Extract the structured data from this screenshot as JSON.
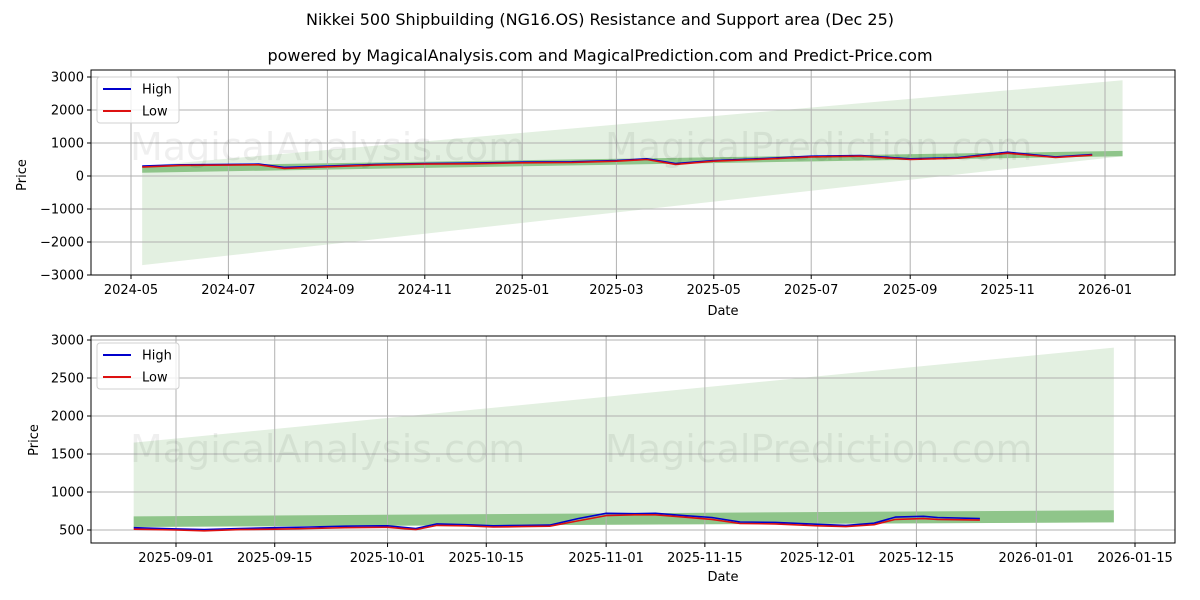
{
  "header": {
    "title": "Nikkei 500 Shipbuilding (NG16.OS) Resistance and Support area (Dec 25)",
    "subtitle": "powered by MagicalAnalysis.com and MagicalPrediction.com and Predict-Price.com"
  },
  "watermarks": [
    "MagicalAnalysis.com",
    "MagicalPrediction.com"
  ],
  "colors": {
    "high": "#0000cc",
    "low": "#dd1111",
    "band_dark": "#8fc58a",
    "band_light": "#e3f0e1",
    "grid": "#b0b0b0"
  },
  "chart_data": [
    {
      "type": "line",
      "title": "Nikkei 500 Shipbuilding (NG16.OS) Resistance and Support area (Dec 25)",
      "subtitle": "powered by MagicalAnalysis.com and MagicalPrediction.com and Predict-Price.com",
      "xlabel": "Date",
      "ylabel": "Price",
      "ylim": [
        -3000,
        3200
      ],
      "yticks": [
        "3000",
        "2000",
        "1000",
        "0",
        "−1000",
        "−2000",
        "−3000"
      ],
      "xticks": [
        "2024-05",
        "2024-07",
        "2024-09",
        "2024-11",
        "2025-01",
        "2025-03",
        "2025-05",
        "2025-07",
        "2025-09",
        "2025-11",
        "2026-01"
      ],
      "grid": true,
      "legend": {
        "position": "upper left",
        "entries": [
          "High",
          "Low"
        ]
      },
      "x": [
        "2024-05-08",
        "2024-06-01",
        "2024-07-01",
        "2024-07-20",
        "2024-08-05",
        "2024-09-01",
        "2024-10-01",
        "2024-11-01",
        "2024-12-01",
        "2025-01-01",
        "2025-02-01",
        "2025-03-01",
        "2025-03-20",
        "2025-04-07",
        "2025-05-01",
        "2025-06-01",
        "2025-07-01",
        "2025-08-01",
        "2025-09-01",
        "2025-10-01",
        "2025-11-01",
        "2025-12-01",
        "2025-12-24"
      ],
      "series": [
        {
          "name": "High",
          "values": [
            300,
            340,
            350,
            360,
            260,
            300,
            350,
            380,
            390,
            420,
            430,
            470,
            520,
            380,
            470,
            530,
            600,
            620,
            520,
            560,
            720,
            580,
            650
          ]
        },
        {
          "name": "Low",
          "values": [
            270,
            320,
            330,
            340,
            230,
            280,
            330,
            360,
            370,
            400,
            410,
            450,
            500,
            350,
            450,
            510,
            580,
            600,
            500,
            540,
            690,
            560,
            630
          ]
        }
      ],
      "bands": [
        {
          "name": "Support/Resistance band (dark)",
          "start": {
            "x": "2024-05-08",
            "lower": 100,
            "upper": 300
          },
          "end": {
            "x": "2026-01-12",
            "lower": 600,
            "upper": 760
          }
        },
        {
          "name": "Prediction range (light)",
          "start": {
            "x": "2024-05-08",
            "lower": -2700,
            "upper": 300
          },
          "end": {
            "x": "2026-01-12",
            "lower": 600,
            "upper": 2900
          }
        }
      ]
    },
    {
      "type": "line",
      "xlabel": "Date",
      "ylabel": "Price",
      "ylim": [
        350,
        3050
      ],
      "yticks": [
        "3000",
        "2500",
        "2000",
        "1500",
        "1000",
        "500"
      ],
      "xticks": [
        "2025-09-01",
        "2025-09-15",
        "2025-10-01",
        "2025-10-15",
        "2025-11-01",
        "2025-11-15",
        "2025-12-01",
        "2025-12-15",
        "2026-01-01",
        "2026-01-15"
      ],
      "grid": true,
      "legend": {
        "position": "upper left",
        "entries": [
          "High",
          "Low"
        ]
      },
      "x": [
        "2025-08-26",
        "2025-09-01",
        "2025-09-05",
        "2025-09-10",
        "2025-09-15",
        "2025-09-20",
        "2025-09-25",
        "2025-10-01",
        "2025-10-05",
        "2025-10-08",
        "2025-10-12",
        "2025-10-16",
        "2025-10-20",
        "2025-10-24",
        "2025-10-28",
        "2025-11-01",
        "2025-11-05",
        "2025-11-08",
        "2025-11-12",
        "2025-11-16",
        "2025-11-20",
        "2025-11-25",
        "2025-12-01",
        "2025-12-05",
        "2025-12-09",
        "2025-12-12",
        "2025-12-16",
        "2025-12-18",
        "2025-12-24"
      ],
      "series": [
        {
          "name": "High",
          "values": [
            530,
            515,
            505,
            520,
            530,
            540,
            550,
            555,
            520,
            580,
            570,
            555,
            560,
            565,
            650,
            720,
            715,
            720,
            690,
            665,
            605,
            600,
            575,
            560,
            590,
            670,
            680,
            665,
            650
          ]
        },
        {
          "name": "Low",
          "values": [
            510,
            500,
            490,
            505,
            510,
            520,
            530,
            535,
            505,
            560,
            555,
            540,
            545,
            550,
            620,
            690,
            700,
            700,
            670,
            640,
            585,
            580,
            555,
            545,
            570,
            640,
            650,
            640,
            630
          ]
        }
      ],
      "bands": [
        {
          "name": "Support/Resistance band (dark)",
          "start": {
            "x": "2025-08-26",
            "lower": 540,
            "upper": 680
          },
          "end": {
            "x": "2026-01-12",
            "lower": 600,
            "upper": 760
          }
        },
        {
          "name": "Prediction range (light)",
          "start": {
            "x": "2025-08-26",
            "lower": 540,
            "upper": 1650
          },
          "end": {
            "x": "2026-01-12",
            "lower": 600,
            "upper": 2900
          }
        }
      ]
    }
  ]
}
